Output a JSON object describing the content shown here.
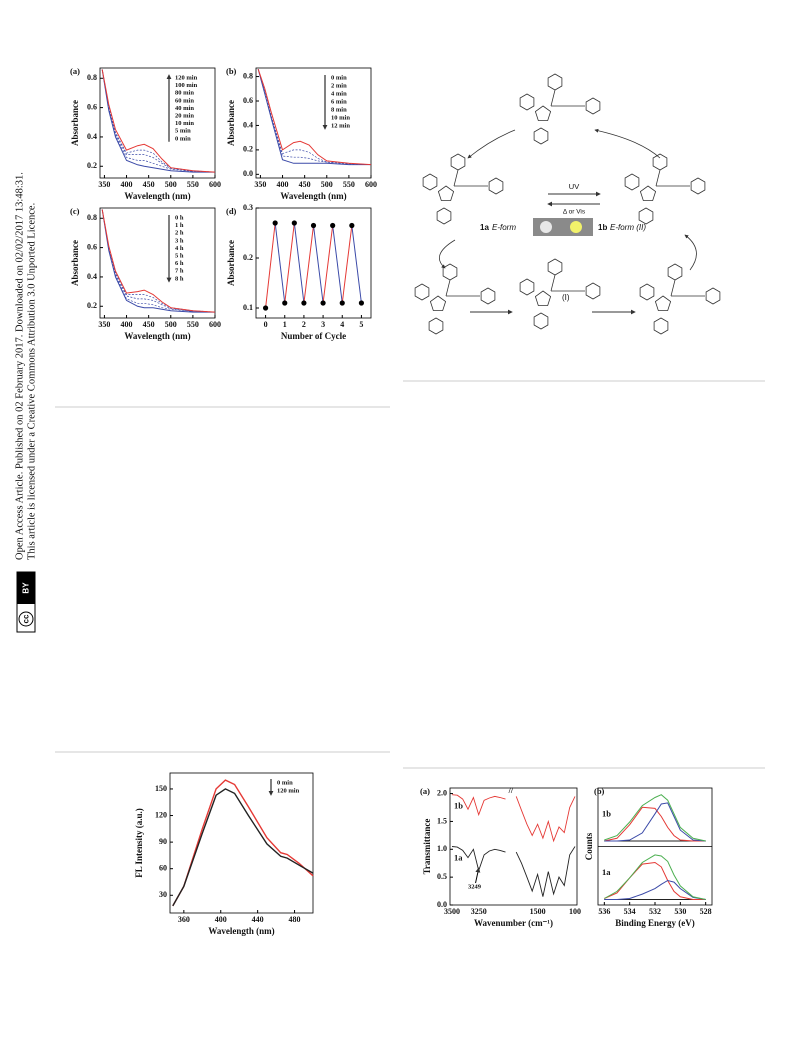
{
  "sidebar": {
    "line1": "Open Access Article. Published on 02 February 2017. Downloaded on 02/02/2017 13:48:31.",
    "line2": "This article is licensed under a Creative Commons Attribution 3.0 Unported Licence.",
    "badge_cc": "cc",
    "badge_by": "BY"
  },
  "figure_uv": {
    "panels": [
      {
        "label": "(a)",
        "type": "line",
        "xlabel": "Wavelength (nm)",
        "ylabel": "Absorbance",
        "xlim": [
          340,
          600
        ],
        "ylim": [
          0.12,
          0.87
        ],
        "xticks": [
          350,
          400,
          450,
          500,
          550,
          600
        ],
        "yticks": [
          0.2,
          0.4,
          0.6,
          0.8
        ],
        "x": [
          345,
          360,
          375,
          400,
          425,
          440,
          460,
          480,
          500,
          550,
          600
        ],
        "series": [
          {
            "color": "#3b4aa8",
            "dash": true,
            "values": [
              0.86,
              0.59,
              0.41,
              0.26,
              0.24,
              0.24,
              0.22,
              0.2,
              0.18,
              0.165,
              0.16
            ]
          },
          {
            "color": "#3b4aa8",
            "dash": true,
            "values": [
              0.86,
              0.6,
              0.42,
              0.28,
              0.28,
              0.28,
              0.26,
              0.22,
              0.185,
              0.165,
              0.16
            ]
          },
          {
            "color": "#3b4aa8",
            "dash": true,
            "values": [
              0.86,
              0.61,
              0.43,
              0.29,
              0.31,
              0.31,
              0.29,
              0.23,
              0.19,
              0.17,
              0.16
            ]
          },
          {
            "color": "#3b4aa8",
            "dash": false,
            "values": [
              0.86,
              0.58,
              0.4,
              0.24,
              0.21,
              0.2,
              0.19,
              0.18,
              0.17,
              0.16,
              0.16
            ]
          },
          {
            "color": "#e53935",
            "dash": false,
            "values": [
              0.86,
              0.62,
              0.45,
              0.31,
              0.34,
              0.35,
              0.32,
              0.25,
              0.19,
              0.17,
              0.16
            ]
          }
        ],
        "legend_labels": [
          "120 min",
          "100 min",
          "80 min",
          "60 min",
          "40 min",
          "20 min",
          "10 min",
          "5 min",
          "0 min"
        ],
        "legend_arrow": "up"
      },
      {
        "label": "(b)",
        "type": "line",
        "xlabel": "Wavelength (nm)",
        "ylabel": "Absorbance",
        "xlim": [
          340,
          600
        ],
        "ylim": [
          -0.03,
          0.87
        ],
        "xticks": [
          350,
          400,
          450,
          500,
          550,
          600
        ],
        "yticks": [
          {
            "value": 0,
            "label": "0.0"
          },
          0.2,
          0.4,
          0.6,
          0.8
        ],
        "x": [
          345,
          360,
          375,
          400,
          425,
          440,
          460,
          480,
          500,
          550,
          600
        ],
        "series": [
          {
            "color": "#3b4aa8",
            "dash": true,
            "values": [
              0.86,
              0.67,
              0.46,
              0.15,
              0.14,
              0.14,
              0.13,
              0.11,
              0.1,
              0.085,
              0.08
            ]
          },
          {
            "color": "#3b4aa8",
            "dash": true,
            "values": [
              0.86,
              0.68,
              0.47,
              0.17,
              0.2,
              0.2,
              0.18,
              0.13,
              0.1,
              0.087,
              0.08
            ]
          },
          {
            "color": "#3b4aa8",
            "dash": false,
            "values": [
              0.86,
              0.66,
              0.45,
              0.12,
              0.09,
              0.09,
              0.09,
              0.09,
              0.09,
              0.08,
              0.08
            ]
          },
          {
            "color": "#e53935",
            "dash": false,
            "values": [
              0.86,
              0.7,
              0.5,
              0.2,
              0.26,
              0.27,
              0.24,
              0.16,
              0.11,
              0.09,
              0.08
            ]
          }
        ],
        "legend_labels": [
          "0 min",
          "2 min",
          "4 min",
          "6 min",
          "8 min",
          "10 min",
          "12 min"
        ],
        "legend_arrow": "down"
      },
      {
        "label": "(c)",
        "type": "line",
        "xlabel": "Wavelength (nm)",
        "ylabel": "Absorbance",
        "xlim": [
          340,
          600
        ],
        "ylim": [
          0.12,
          0.87
        ],
        "xticks": [
          350,
          400,
          450,
          500,
          550,
          600
        ],
        "yticks": [
          0.2,
          0.4,
          0.6,
          0.8
        ],
        "x": [
          345,
          360,
          375,
          400,
          425,
          440,
          460,
          480,
          500,
          550,
          600
        ],
        "series": [
          {
            "color": "#3b4aa8",
            "dash": true,
            "values": [
              0.86,
              0.59,
              0.41,
              0.25,
              0.22,
              0.22,
              0.21,
              0.19,
              0.18,
              0.165,
              0.16
            ]
          },
          {
            "color": "#3b4aa8",
            "dash": true,
            "values": [
              0.86,
              0.6,
              0.42,
              0.27,
              0.25,
              0.25,
              0.24,
              0.21,
              0.185,
              0.165,
              0.16
            ]
          },
          {
            "color": "#3b4aa8",
            "dash": true,
            "values": [
              0.86,
              0.6,
              0.43,
              0.28,
              0.28,
              0.28,
              0.26,
              0.22,
              0.19,
              0.17,
              0.16
            ]
          },
          {
            "color": "#3b4aa8",
            "dash": false,
            "values": [
              0.86,
              0.58,
              0.4,
              0.24,
              0.2,
              0.19,
              0.19,
              0.18,
              0.17,
              0.16,
              0.16
            ]
          },
          {
            "color": "#e53935",
            "dash": false,
            "values": [
              0.86,
              0.61,
              0.44,
              0.29,
              0.3,
              0.31,
              0.28,
              0.23,
              0.19,
              0.17,
              0.16
            ]
          }
        ],
        "legend_labels": [
          "0 h",
          "1 h",
          "2 h",
          "3 h",
          "4 h",
          "5 h",
          "6 h",
          "7 h",
          "8 h"
        ],
        "legend_arrow": "down"
      },
      {
        "label": "(d)",
        "type": "cycle",
        "xlabel": "Number of Cycle",
        "ylabel": "Absorbance",
        "xlim": [
          -0.5,
          5.5
        ],
        "ylim": [
          0.08,
          0.3
        ],
        "xticks": [
          0,
          1,
          2,
          3,
          4,
          5
        ],
        "yticks": [
          0.1,
          0.2,
          0.3
        ],
        "x": [
          0,
          0.5,
          1,
          1.5,
          2,
          2.5,
          3,
          3.5,
          4,
          4.5,
          5
        ],
        "values": [
          0.1,
          0.27,
          0.11,
          0.27,
          0.11,
          0.265,
          0.11,
          0.265,
          0.11,
          0.265,
          0.11
        ],
        "marker_color": "#000000",
        "rise_color": "#e53935",
        "fall_color": "#3b4aa8"
      }
    ]
  },
  "scheme": {
    "uv": "UV",
    "reverse": "Δ or Vis",
    "form_1a": "1a",
    "form_1a_text": "E-form",
    "form_1b": "1b",
    "form_1b_text": "E-form (II)",
    "intermediate": "(I)"
  },
  "figure_fl": {
    "type": "line",
    "xlabel": "Wavelength (nm)",
    "ylabel": "FL Intensity (a.u.)",
    "xlim": [
      345,
      500
    ],
    "ylim": [
      10,
      168
    ],
    "xticks": [
      360,
      400,
      440,
      480
    ],
    "yticks": [
      30,
      60,
      90,
      120,
      150
    ],
    "x": [
      348,
      360,
      380,
      395,
      405,
      415,
      430,
      450,
      465,
      472,
      485,
      500
    ],
    "series": [
      {
        "color": "#e53935",
        "dash": false,
        "values": [
          18,
          40,
          105,
          150,
          160,
          155,
          130,
          95,
          78,
          76,
          66,
          52
        ]
      },
      {
        "color": "#222222",
        "dash": false,
        "values": [
          18,
          40,
          100,
          143,
          150,
          145,
          120,
          88,
          74,
          72,
          64,
          55
        ]
      }
    ],
    "legend_labels": [
      "0 min",
      "120 min"
    ],
    "legend_arrow": "down"
  },
  "figure_ir_xps": {
    "panels": [
      {
        "label": "(a)",
        "type": "ir",
        "xlabel": "Wavenumber (cm⁻¹)",
        "ylabel": "Transmittance",
        "ylim": [
          0,
          2.1
        ],
        "yticks": [
          {
            "value": 0,
            "label": "0.0"
          },
          0.5,
          {
            "value": 1,
            "label": "1.0"
          },
          1.5,
          {
            "value": 2,
            "label": "2.0"
          }
        ],
        "xtick_labels": [
          "3500",
          "3250",
          "1500",
          "100"
        ],
        "series": [
          {
            "name": "1b",
            "color": "#e53935",
            "values": [
              1.98,
              1.97,
              1.9,
              1.72,
              1.93,
              1.62,
              1.88,
              1.92,
              1.95,
              1.93,
              1.9,
              null,
              1.95,
              1.7,
              1.45,
              1.25,
              1.45,
              1.2,
              1.5,
              1.15,
              1.4,
              1.3,
              1.75,
              1.95
            ]
          },
          {
            "name": "1a",
            "color": "#222222",
            "values": [
              1.05,
              1.04,
              0.98,
              0.85,
              1.0,
              0.62,
              0.9,
              0.97,
              1.0,
              0.98,
              0.95,
              null,
              0.95,
              0.75,
              0.5,
              0.25,
              0.55,
              0.15,
              0.6,
              0.2,
              0.5,
              0.35,
              0.9,
              1.05
            ]
          }
        ],
        "annotation": "3249"
      },
      {
        "label": "(b)",
        "type": "xps",
        "xlabel": "Binding Energy (eV)",
        "ylabel": "Counts",
        "xlim": [
          536.5,
          527.5
        ],
        "xticks": [
          536,
          534,
          532,
          530,
          528
        ],
        "x": [
          536,
          535,
          534,
          533,
          532,
          531.5,
          531,
          530.5,
          530,
          529,
          528
        ],
        "subplots": [
          {
            "name": "1b",
            "ylim": [
              0,
              1
            ],
            "series": [
              {
                "color": "#222222",
                "values": [
                  0.1,
                  0.1,
                  0.1,
                  0.1,
                  0.1,
                  0.1,
                  0.1,
                  0.1,
                  0.1,
                  0.1,
                  0.1
                ]
              },
              {
                "color": "#e53935",
                "values": [
                  0.1,
                  0.15,
                  0.4,
                  0.72,
                  0.7,
                  0.55,
                  0.35,
                  0.2,
                  0.12,
                  0.1,
                  0.1
                ]
              },
              {
                "color": "#3b4aa8",
                "values": [
                  0.1,
                  0.1,
                  0.12,
                  0.25,
                  0.6,
                  0.78,
                  0.8,
                  0.55,
                  0.3,
                  0.12,
                  0.1
                ]
              },
              {
                "color": "#4caf50",
                "values": [
                  0.12,
                  0.2,
                  0.45,
                  0.75,
                  0.9,
                  0.95,
                  0.85,
                  0.6,
                  0.35,
                  0.15,
                  0.1
                ]
              }
            ]
          },
          {
            "name": "1a",
            "ylim": [
              0,
              1
            ],
            "series": [
              {
                "color": "#222222",
                "values": [
                  0.1,
                  0.1,
                  0.1,
                  0.1,
                  0.1,
                  0.1,
                  0.1,
                  0.1,
                  0.1,
                  0.1,
                  0.1
                ]
              },
              {
                "color": "#e53935",
                "values": [
                  0.12,
                  0.22,
                  0.5,
                  0.75,
                  0.78,
                  0.7,
                  0.45,
                  0.25,
                  0.15,
                  0.1,
                  0.1
                ]
              },
              {
                "color": "#3b4aa8",
                "values": [
                  0.1,
                  0.1,
                  0.12,
                  0.2,
                  0.3,
                  0.38,
                  0.45,
                  0.42,
                  0.3,
                  0.14,
                  0.1
                ]
              },
              {
                "color": "#4caf50",
                "values": [
                  0.12,
                  0.25,
                  0.5,
                  0.78,
                  0.92,
                  0.9,
                  0.8,
                  0.55,
                  0.35,
                  0.15,
                  0.1
                ]
              }
            ]
          }
        ]
      }
    ]
  }
}
